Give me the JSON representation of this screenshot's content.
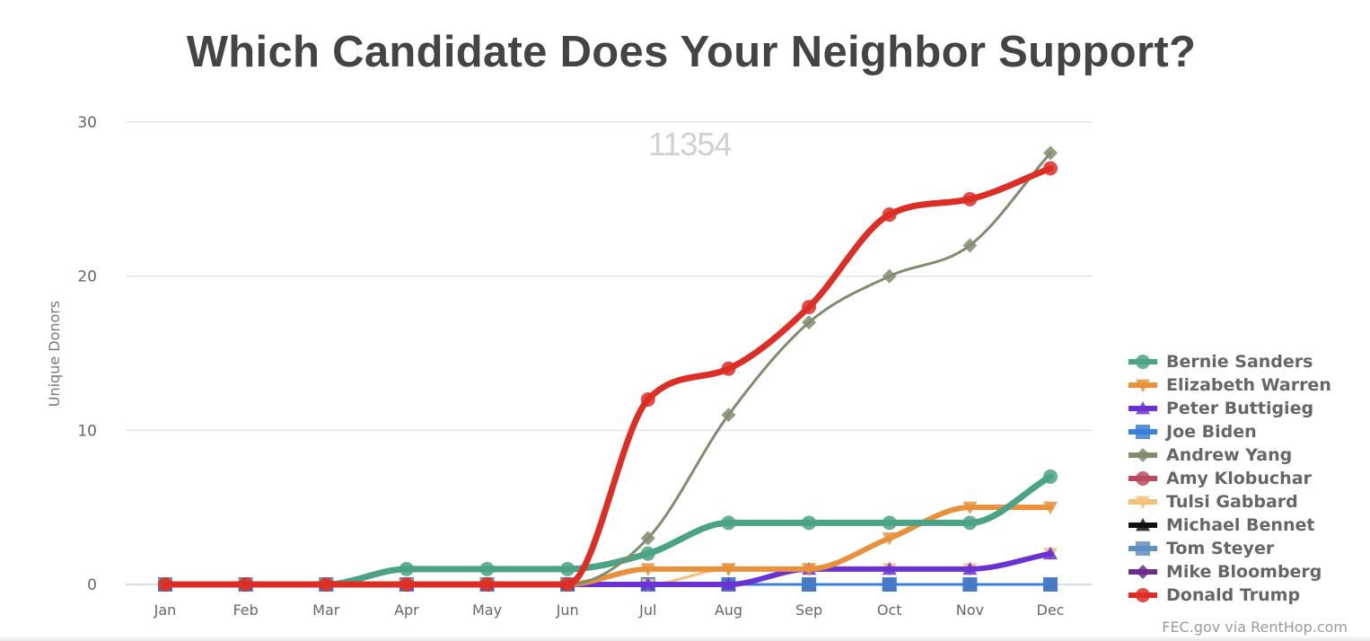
{
  "title": "Which Candidate Does Your Neighbor Support?",
  "watermark": "11354",
  "credit": "FEC.gov via RentHop.com",
  "chart_data": {
    "type": "line",
    "title": "Which Candidate Does Your Neighbor Support?",
    "subtitle": "11354",
    "xlabel": "",
    "ylabel": "Unique Donors",
    "categories": [
      "Jan",
      "Feb",
      "Mar",
      "Apr",
      "May",
      "Jun",
      "Jul",
      "Aug",
      "Sep",
      "Oct",
      "Nov",
      "Dec"
    ],
    "ylim": [
      0,
      30
    ],
    "yticks": [
      0,
      10,
      20,
      30
    ],
    "grid": true,
    "legend_position": "right",
    "smooth": true,
    "series": [
      {
        "name": "Bernie Sanders",
        "color": "#4aa384",
        "marker": "circle",
        "values": [
          0,
          0,
          0,
          1,
          1,
          1,
          2,
          4,
          4,
          4,
          4,
          7
        ]
      },
      {
        "name": "Elizabeth Warren",
        "color": "#e8913a",
        "marker": "triangle-down",
        "values": [
          0,
          0,
          0,
          0,
          0,
          0,
          1,
          1,
          1,
          3,
          5,
          5
        ]
      },
      {
        "name": "Peter Buttigieg",
        "color": "#6a32d2",
        "marker": "triangle",
        "values": [
          0,
          0,
          0,
          0,
          0,
          0,
          0,
          0,
          1,
          1,
          1,
          2
        ]
      },
      {
        "name": "Joe Biden",
        "color": "#3b7fd6",
        "marker": "square",
        "values": [
          0,
          0,
          0,
          0,
          0,
          0,
          0,
          0,
          0,
          0,
          0,
          0
        ]
      },
      {
        "name": "Andrew Yang",
        "color": "#7f8c6e",
        "marker": "diamond",
        "values": [
          0,
          0,
          0,
          0,
          0,
          0,
          3,
          11,
          17,
          20,
          22,
          28
        ]
      },
      {
        "name": "Amy Klobuchar",
        "color": "#b84a5c",
        "marker": "circle",
        "values": [
          0,
          0,
          0,
          0,
          0,
          0,
          0,
          0,
          0,
          0,
          0,
          0
        ]
      },
      {
        "name": "Tulsi Gabbard",
        "color": "#f3c07a",
        "marker": "triangle-down",
        "values": [
          0,
          0,
          0,
          0,
          0,
          0,
          0,
          1,
          1,
          1,
          1,
          2
        ]
      },
      {
        "name": "Michael Bennet",
        "color": "#111111",
        "marker": "triangle",
        "values": [
          0,
          0,
          0,
          0,
          0,
          0,
          0,
          0,
          0,
          0,
          0,
          0
        ]
      },
      {
        "name": "Tom Steyer",
        "color": "#5f8fbf",
        "marker": "square",
        "values": [
          0,
          0,
          0,
          0,
          0,
          0,
          0,
          0,
          0,
          0,
          0,
          0
        ]
      },
      {
        "name": "Mike Bloomberg",
        "color": "#6b2c8a",
        "marker": "diamond",
        "values": [
          0,
          0,
          0,
          0,
          0,
          0,
          0,
          0,
          0,
          0,
          0,
          0
        ]
      },
      {
        "name": "Donald Trump",
        "color": "#dd2e26",
        "marker": "circle",
        "values": [
          0,
          0,
          0,
          0,
          0,
          0,
          12,
          14,
          18,
          24,
          25,
          27
        ]
      }
    ]
  }
}
